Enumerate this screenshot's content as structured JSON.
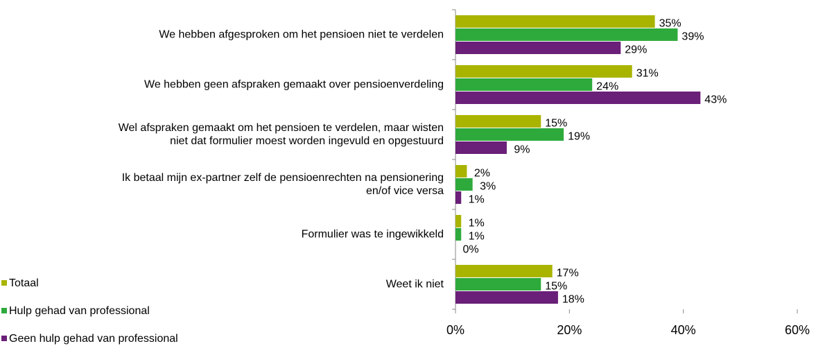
{
  "chart_data": {
    "type": "bar",
    "orientation": "horizontal",
    "categories": [
      "We hebben afgesproken om het pensioen niet te verdelen",
      "We hebben geen afspraken gemaakt over pensioenverdeling",
      "Wel afspraken gemaakt om het pensioen te verdelen, maar wisten\nniet dat formulier moest worden ingevuld en opgestuurd",
      "Ik betaal mijn ex-partner zelf de pensioenrechten na pensionering\nen/of vice versa",
      "Formulier was te ingewikkeld",
      "Weet ik niet"
    ],
    "series": [
      {
        "name": "Totaal",
        "color": "#a9b400",
        "values": [
          35,
          31,
          15,
          2,
          1,
          17
        ],
        "value_labels": [
          "35%",
          "31%",
          "15%",
          "2%",
          "1%",
          "17%"
        ]
      },
      {
        "name": "Hulp gehad van professional",
        "color": "#2eaa3c",
        "values": [
          39,
          24,
          19,
          3,
          1,
          15
        ],
        "value_labels": [
          "39%",
          "24%",
          "19%",
          "3%",
          "1%",
          "15%"
        ]
      },
      {
        "name": "Geen hulp gehad van professional",
        "color": "#6a1f78",
        "values": [
          29,
          43,
          9,
          1,
          0,
          18
        ],
        "value_labels": [
          "29%",
          "43%",
          "9%",
          "1%",
          "0%",
          "18%"
        ]
      }
    ],
    "xlim": [
      0,
      60
    ],
    "xticks": [
      {
        "value": 0,
        "label": "0%"
      },
      {
        "value": 20,
        "label": "20%"
      },
      {
        "value": 40,
        "label": "40%"
      },
      {
        "value": 60,
        "label": "60%"
      }
    ],
    "legend": "bottom-left"
  }
}
